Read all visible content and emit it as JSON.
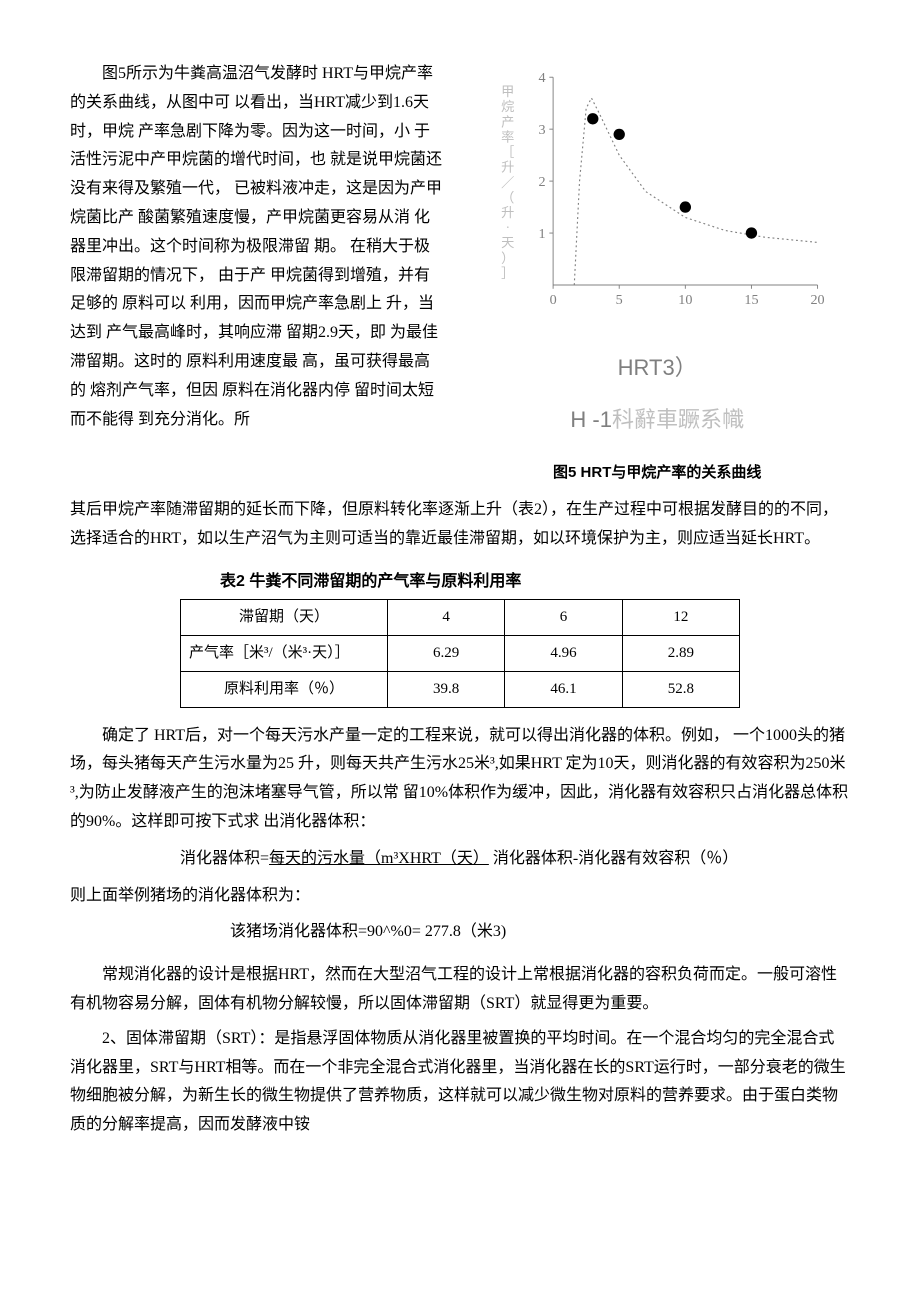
{
  "top_left_text": "图5所示为牛粪高温沼气发酵时 HRT与甲烷产率的关系曲线，从图中可 以看出，当HRT减少到1.6天时，甲烷 产率急剧下降为零。因为这一时间，小 于活性污泥中产甲烷菌的增代时间，也 就是说甲烷菌还没有来得及繁殖一代， 已被料液冲走，这是因为产甲烷菌比产 酸菌繁殖速度慢，产甲烷菌更容易从消 化器里冲出。这个时间称为极限滞留 期。 在稍大于极限滞留期的情况下， 由于产 甲烷菌得到增殖，并有足够的 原料可以 利用，因而甲烷产率急剧上 升，当达到 产气最高峰时，其响应滞 留期2.9天，即 为最佳滞留期。这时的 原料利用速度最 高，虽可获得最高的 熔剂产气率，但因 原料在消化器内停 留时间太短而不能得 到充分消化。所",
  "chart": {
    "type": "scatter-line",
    "background_color": "#ffffff",
    "axis_color": "#808080",
    "curve_color": "#808080",
    "marker_color": "#000000",
    "marker_radius": 6,
    "xlim": [
      0,
      20
    ],
    "ylim": [
      0,
      4
    ],
    "xticks": [
      0,
      5,
      10,
      15,
      20
    ],
    "yticks": [
      1,
      2,
      3,
      4
    ],
    "ylabel_glyphs": "甲烷产率［升／（升·天）］",
    "ylabel_color": "#bfbfbf",
    "points": [
      {
        "x": 3.0,
        "y": 3.2
      },
      {
        "x": 5.0,
        "y": 2.9
      },
      {
        "x": 10.0,
        "y": 1.5
      },
      {
        "x": 15.0,
        "y": 1.0
      }
    ],
    "curve": [
      {
        "x": 1.6,
        "y": 0.0
      },
      {
        "x": 2.0,
        "y": 2.0
      },
      {
        "x": 2.5,
        "y": 3.4
      },
      {
        "x": 2.9,
        "y": 3.6
      },
      {
        "x": 3.5,
        "y": 3.3
      },
      {
        "x": 5.0,
        "y": 2.5
      },
      {
        "x": 7.0,
        "y": 1.8
      },
      {
        "x": 10.0,
        "y": 1.3
      },
      {
        "x": 13.0,
        "y": 1.05
      },
      {
        "x": 16.0,
        "y": 0.92
      },
      {
        "x": 20.0,
        "y": 0.82
      }
    ]
  },
  "chart_sub1": "HRT3）",
  "chart_sub2_a": "H -1",
  "chart_sub2_b": "科辭車蹶系幟",
  "fig5_title": "图5 HRT与甲烷产率的关系曲线",
  "para_after_fig": "其后甲烷产率随滞留期的延长而下降，但原料转化率逐渐上升（表2），在生产过程中可根据发酵目的的不同，选择适合的HRT，如以生产沼气为主则可适当的靠近最佳滞留期，如以环境保护为主，则应适当延长HRT。",
  "table2": {
    "title": "表2 牛粪不同滞留期的产气率与原料利用率",
    "rows": [
      [
        "滞留期（天）",
        "4",
        "6",
        "12"
      ],
      [
        "产气率［米³/（米³·天）］",
        "6.29",
        "4.96",
        "2.89"
      ],
      [
        "原料利用率（％）",
        "39.8",
        "46.1",
        "52.8"
      ]
    ]
  },
  "para_volume": "确定了 HRT后，对一个每天污水产量一定的工程来说，就可以得出消化器的体积。例如， 一个1000头的猪场，每头猪每天产生污水量为25 升，则每天共产生污水25米³,如果HRT 定为10天，则消化器的有效容积为250米³,为防止发酵液产生的泡沫堵塞导气管，所以常 留10%体积作为缓冲，因此，消化器有效容积只占消化器总体积的90%。这样即可按下式求 出消化器体积：",
  "formula1_a": "消化器体积=",
  "formula1_b": "每天的污水量（m³XHRT（天）",
  "formula1_c": " 消化器体积-消化器有效容积（％）",
  "formula1_line2": "则上面举例猪场的消化器体积为：",
  "formula2_text": "该猪场消化器体积=90^%0= 277.8（米3)",
  "para_design": "常规消化器的设计是根据HRT，然而在大型沼气工程的设计上常根据消化器的容积负荷而定。一般可溶性有机物容易分解，固体有机物分解较慢，所以固体滞留期（SRT）就显得更为重要。",
  "para_srt": "2、固体滞留期（SRT）：是指悬浮固体物质从消化器里被置换的平均时间。在一个混合均匀的完全混合式消化器里，SRT与HRT相等。而在一个非完全混合式消化器里，当消化器在长的SRT运行时，一部分衰老的微生物细胞被分解，为新生长的微生物提供了营养物质，这样就可以减少微生物对原料的营养要求。由于蛋白类物质的分解率提高，因而发酵液中铵"
}
